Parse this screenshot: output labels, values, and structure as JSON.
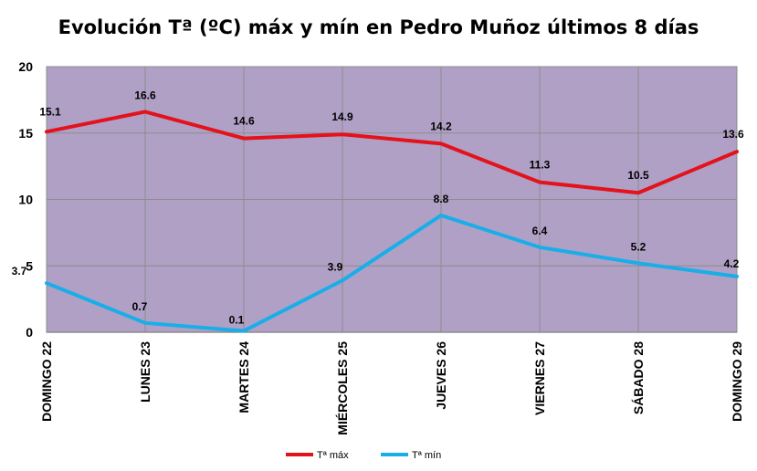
{
  "chart_data": {
    "type": "line",
    "title": "Evolución Tª (ºC) máx y mín en Pedro Muñoz últimos 8 días",
    "categories": [
      "DOMINGO 22",
      "LUNES 23",
      "MARTES 24",
      "MIÉRCOLES 25",
      "JUEVES 26",
      "VIERNES 27",
      "SÁBADO 28",
      "DOMINGO 29"
    ],
    "series": [
      {
        "name": "Tª máx",
        "color": "#e3121b",
        "values": [
          15.1,
          16.6,
          14.6,
          14.9,
          14.2,
          11.3,
          10.5,
          13.6
        ]
      },
      {
        "name": "Tª mín",
        "color": "#19aee8",
        "values": [
          3.7,
          0.7,
          0.1,
          3.9,
          8.8,
          6.4,
          5.2,
          4.2
        ]
      }
    ],
    "ylim": [
      0,
      20
    ],
    "yticks": [
      0,
      5,
      10,
      15,
      20
    ],
    "xlabel": "",
    "ylabel": "",
    "grid": true,
    "plot_background": "#b0a0c6",
    "legend": "bottom"
  }
}
